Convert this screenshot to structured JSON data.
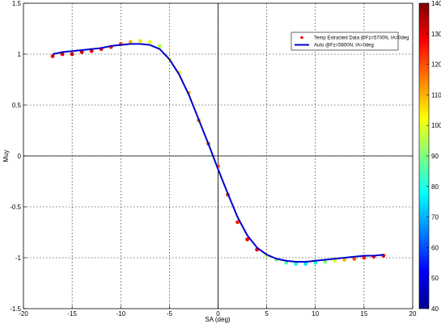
{
  "chart_data": {
    "type": "scatter",
    "xlabel": "SA (deg)",
    "ylabel": "Muy",
    "xlim": [
      -20,
      20
    ],
    "ylim": [
      -1.5,
      1.5
    ],
    "xticks": [
      -20,
      -15,
      -10,
      -5,
      0,
      5,
      10,
      15,
      20
    ],
    "yticks": [
      -1.5,
      -1,
      -0.5,
      0,
      0.5,
      1,
      1.5
    ],
    "grid": true,
    "legend_position": "top-right",
    "series": [
      {
        "name": "Temp Extracted Data @Fz=5700N, IA=0deg",
        "kind": "scatter",
        "color_by": "temperature",
        "x": [
          -17.0,
          -16.0,
          -15.0,
          -14.0,
          -13.0,
          -12.0,
          -11.0,
          -10.0,
          -9.0,
          -8.0,
          -7.0,
          -6.0,
          -5.0,
          -4.0,
          -3.0,
          -2.0,
          -1.0,
          0.0,
          1.0,
          2.0,
          3.0,
          4.0,
          5.0,
          6.0,
          7.0,
          8.0,
          9.0,
          10.0,
          11.0,
          12.0,
          13.0,
          14.0,
          15.0,
          16.0,
          17.0
        ],
        "y": [
          0.98,
          1.0,
          1.0,
          1.02,
          1.03,
          1.05,
          1.07,
          1.1,
          1.12,
          1.13,
          1.12,
          1.08,
          0.95,
          0.82,
          0.62,
          0.35,
          0.12,
          -0.1,
          -0.38,
          -0.65,
          -0.82,
          -0.92,
          -0.98,
          -1.02,
          -1.05,
          -1.06,
          -1.06,
          -1.05,
          -1.04,
          -1.03,
          -1.02,
          -1.01,
          -1.0,
          -0.99,
          -0.98
        ],
        "temperature": [
          130,
          132,
          133,
          132,
          130,
          128,
          125,
          122,
          110,
          105,
          100,
          95,
          100,
          105,
          110,
          115,
          118,
          120,
          122,
          125,
          128,
          130,
          95,
          90,
          85,
          80,
          75,
          80,
          90,
          100,
          110,
          120,
          125,
          128,
          130
        ]
      },
      {
        "name": "Auto @Fz=5600N, IA=0deg",
        "kind": "line",
        "color": "#0000cc",
        "x": [
          -17.0,
          -16.0,
          -15.0,
          -14.0,
          -13.0,
          -12.0,
          -11.0,
          -10.0,
          -9.0,
          -8.0,
          -7.0,
          -6.0,
          -5.0,
          -4.0,
          -3.0,
          -2.0,
          -1.0,
          0.0,
          1.0,
          2.0,
          3.0,
          4.0,
          5.0,
          6.0,
          7.0,
          8.0,
          9.0,
          10.0,
          11.0,
          12.0,
          13.0,
          14.0,
          15.0,
          16.0,
          17.0
        ],
        "y": [
          1.0,
          1.02,
          1.03,
          1.04,
          1.05,
          1.06,
          1.08,
          1.09,
          1.1,
          1.1,
          1.09,
          1.05,
          0.95,
          0.8,
          0.6,
          0.36,
          0.12,
          -0.13,
          -0.37,
          -0.6,
          -0.78,
          -0.9,
          -0.97,
          -1.01,
          -1.03,
          -1.04,
          -1.04,
          -1.03,
          -1.02,
          -1.01,
          -1.0,
          -0.99,
          -0.98,
          -0.98,
          -0.97
        ]
      }
    ],
    "colorbar": {
      "min": 40,
      "max": 140,
      "ticks": [
        40,
        50,
        60,
        70,
        80,
        90,
        100,
        110,
        120,
        130,
        140
      ]
    }
  }
}
